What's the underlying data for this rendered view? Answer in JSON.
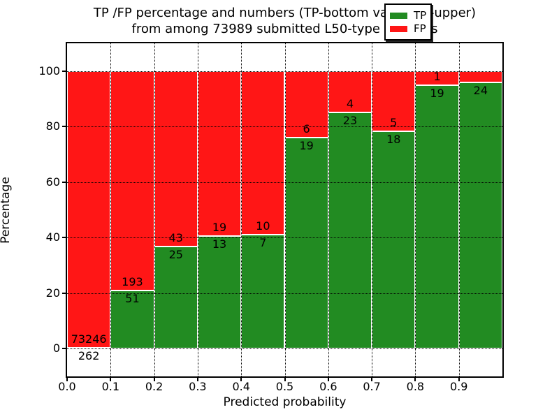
{
  "title": {
    "line1": "TP /FP percentage and numbers (TP-bottom value, FP-upper)",
    "line2": "from among 73989 submitted L50-type contacts"
  },
  "axes": {
    "x_label": "Predicted probability",
    "y_label": "Percentage",
    "x_ticks": [
      "0.0",
      "0.1",
      "0.2",
      "0.3",
      "0.4",
      "0.5",
      "0.6",
      "0.7",
      "0.8",
      "0.9"
    ],
    "y_ticks": [
      "0",
      "20",
      "40",
      "60",
      "80",
      "100"
    ],
    "xlim": [
      0.0,
      1.0
    ],
    "ylim": [
      -10,
      110
    ],
    "grid_style": "dotted"
  },
  "legend": {
    "position": "upper-right",
    "items": [
      {
        "label": "TP",
        "color": "#228b22"
      },
      {
        "label": "FP",
        "color": "#ff1616"
      }
    ]
  },
  "colors": {
    "tp_green": "#228b22",
    "fp_red": "#ff1616",
    "background": "#ffffff",
    "frame": "#000000"
  },
  "chart_data": {
    "type": "bar",
    "stacked": true,
    "unit": "percent-of-bin",
    "title": "TP /FP percentage and numbers (TP-bottom value, FP-upper) from among 73989 submitted L50-type contacts",
    "xlabel": "Predicted probability",
    "ylabel": "Percentage",
    "total_submitted_contacts": 73989,
    "bin_width": 0.1,
    "categories": [
      "0.0-0.1",
      "0.1-0.2",
      "0.2-0.3",
      "0.3-0.4",
      "0.4-0.5",
      "0.5-0.6",
      "0.6-0.7",
      "0.7-0.8",
      "0.8-0.9",
      "0.9-1.0"
    ],
    "bins": [
      {
        "x0": 0.0,
        "tp": 262,
        "fp": 73246,
        "tp_label": "262",
        "fp_label": "73246"
      },
      {
        "x0": 0.1,
        "tp": 51,
        "fp": 193,
        "tp_label": "51",
        "fp_label": "193"
      },
      {
        "x0": 0.2,
        "tp": 25,
        "fp": 43,
        "tp_label": "25",
        "fp_label": "43"
      },
      {
        "x0": 0.3,
        "tp": 13,
        "fp": 19,
        "tp_label": "13",
        "fp_label": "19"
      },
      {
        "x0": 0.4,
        "tp": 7,
        "fp": 10,
        "tp_label": "7",
        "fp_label": "10"
      },
      {
        "x0": 0.5,
        "tp": 19,
        "fp": 6,
        "tp_label": "19",
        "fp_label": "6"
      },
      {
        "x0": 0.6,
        "tp": 23,
        "fp": 4,
        "tp_label": "23",
        "fp_label": "4"
      },
      {
        "x0": 0.7,
        "tp": 18,
        "fp": 5,
        "tp_label": "18",
        "fp_label": "5"
      },
      {
        "x0": 0.8,
        "tp": 19,
        "fp": 1,
        "tp_label": "19",
        "fp_label": "1"
      },
      {
        "x0": 0.9,
        "tp": 24,
        "fp": 1,
        "tp_label": "24",
        "fp_label": "",
        "fp_label_note": "occluded by legend box"
      }
    ]
  }
}
